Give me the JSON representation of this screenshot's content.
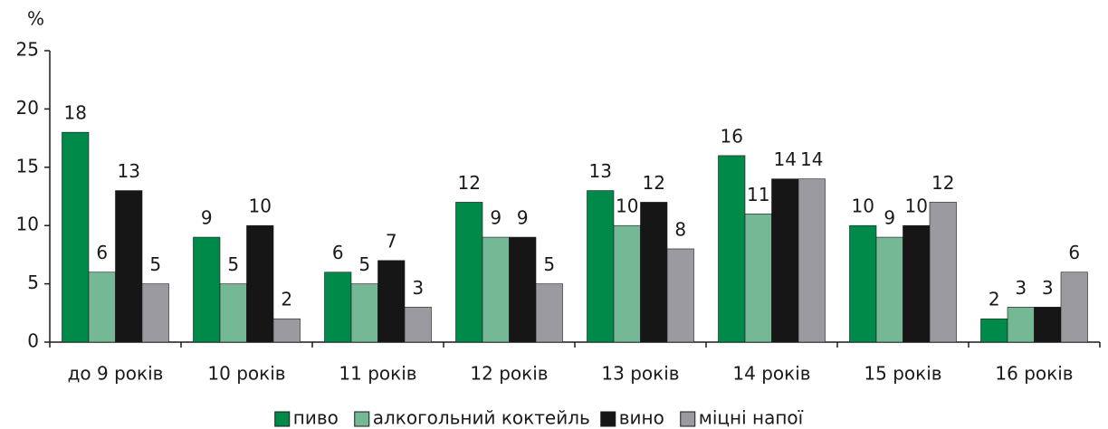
{
  "chart_data": {
    "type": "bar",
    "y_label": "%",
    "categories": [
      "до 9 років",
      "10 років",
      "11 років",
      "12 років",
      "13 років",
      "14 років",
      "15 років",
      "16 років"
    ],
    "series": [
      {
        "name": "пиво",
        "color": "#008a4a",
        "values": [
          18,
          9,
          6,
          12,
          13,
          16,
          10,
          2
        ]
      },
      {
        "name": "алкогольний коктейль",
        "color": "#74b896",
        "values": [
          6,
          5,
          5,
          9,
          10,
          11,
          9,
          3
        ]
      },
      {
        "name": "вино",
        "color": "#161616",
        "values": [
          13,
          10,
          7,
          9,
          12,
          14,
          10,
          3
        ]
      },
      {
        "name": "міцні напої",
        "color": "#9a9aa0",
        "values": [
          5,
          2,
          3,
          5,
          8,
          14,
          12,
          6
        ]
      }
    ],
    "ylim": [
      0,
      25
    ],
    "yticks": [
      0,
      5,
      10,
      15,
      20,
      25
    ],
    "legend": "bottom"
  }
}
